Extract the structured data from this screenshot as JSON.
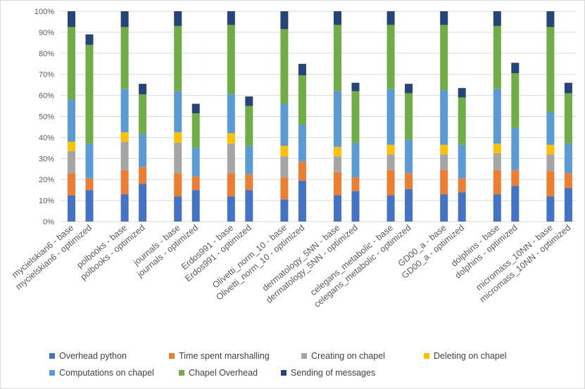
{
  "chart_data": {
    "type": "bar",
    "stacked": true,
    "title": "",
    "xlabel": "",
    "ylabel": "",
    "ylim": [
      0,
      100
    ],
    "yticks": [
      "0%",
      "10%",
      "20%",
      "30%",
      "40%",
      "50%",
      "60%",
      "70%",
      "80%",
      "90%",
      "100%"
    ],
    "grid": true,
    "legend_position": "bottom",
    "categories": [
      "mycielskian6 - base",
      "mycielskian6 - optimized",
      "polbooks - base",
      "polbooks - optimized",
      "journals - base",
      "journals - optimized",
      "Erdos991 - base",
      "Erdos991 - optimized",
      "Olivetti_norm_10 - base",
      "Olivetti_norm_10 - optimized",
      "dermatology_5NN - base",
      "dermatology_5NN - optimized",
      "celegans_metabolic - base",
      "celegans_metabolic - optimized",
      "GD00_a - base",
      "GD00_a - optimized",
      "dolphins - base",
      "dolphins - optimized",
      "micromass_10NN - base",
      "micromass_10NN - optimized"
    ],
    "series": [
      {
        "name": "Overhead python",
        "color": "#4472c4",
        "values": [
          12.5,
          15.0,
          13.0,
          18.0,
          12.0,
          15.0,
          12.0,
          15.0,
          10.5,
          19.5,
          12.5,
          14.5,
          12.5,
          15.5,
          13.0,
          14.0,
          13.0,
          17.0,
          12.0,
          16.0
        ]
      },
      {
        "name": "Time spent marshalling",
        "color": "#ed7d31",
        "values": [
          10.5,
          5.5,
          11.5,
          8.0,
          11.0,
          6.5,
          11.0,
          7.5,
          10.5,
          9.0,
          11.0,
          6.5,
          12.0,
          7.5,
          11.5,
          6.5,
          11.5,
          7.5,
          12.0,
          7.0
        ]
      },
      {
        "name": "Creating on chapel",
        "color": "#a5a5a5",
        "values": [
          10.5,
          0,
          13.5,
          0,
          14.5,
          0,
          14.0,
          0,
          10.0,
          0,
          7.5,
          0,
          7.5,
          0,
          7.5,
          0,
          8.0,
          0,
          8.0,
          0
        ]
      },
      {
        "name": "Deleting on chapel",
        "color": "#ffc000",
        "values": [
          4.5,
          0,
          4.5,
          0,
          5.0,
          0,
          5.0,
          0,
          5.0,
          0,
          4.5,
          0,
          4.5,
          0,
          4.5,
          0,
          4.5,
          0,
          4.5,
          0
        ]
      },
      {
        "name": "Computations on chapel",
        "color": "#5b9bd5",
        "values": [
          20.0,
          16.5,
          20.5,
          15.5,
          19.5,
          13.5,
          18.5,
          13.5,
          20.0,
          17.5,
          26.5,
          16.5,
          26.5,
          16.0,
          26.0,
          16.0,
          26.0,
          20.0,
          15.5,
          14.0
        ]
      },
      {
        "name": "Chapel Overhead",
        "color": "#70ad47",
        "values": [
          34.5,
          47.0,
          29.5,
          19.0,
          31.0,
          16.5,
          33.0,
          19.0,
          35.5,
          23.5,
          31.5,
          24.5,
          30.5,
          22.0,
          31.0,
          22.5,
          30.0,
          26.0,
          40.5,
          24.0
        ]
      },
      {
        "name": "Sending of messages",
        "color": "#264478",
        "values": [
          7.5,
          5.0,
          7.5,
          5.0,
          7.0,
          4.5,
          6.5,
          4.5,
          8.5,
          5.5,
          6.5,
          4.0,
          6.5,
          4.5,
          6.5,
          4.5,
          7.0,
          5.0,
          7.5,
          5.0
        ]
      }
    ]
  }
}
